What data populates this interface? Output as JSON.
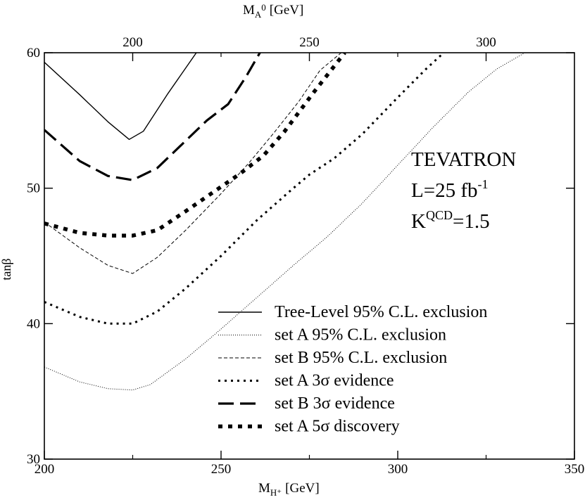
{
  "chart_data": {
    "type": "line",
    "xlabel": "M",
    "xlabel_sub": "H⁺",
    "xlabel_unit": "[GeV]",
    "x2label": "M",
    "x2label_sub": "A",
    "x2label_sup": "0",
    "x2label_unit": "[GeV]",
    "ylabel": "tanβ",
    "xlim": [
      200,
      350
    ],
    "ylim": [
      30,
      60
    ],
    "x2lim_note": "top axis: M_A0 corresponding to bottom M_H+",
    "x_ticks": [
      200,
      250,
      300,
      350
    ],
    "x_tick_labels": [
      "200",
      "250",
      "300",
      "350"
    ],
    "y_ticks": [
      30,
      40,
      50,
      60
    ],
    "y_tick_labels": [
      "30",
      "40",
      "50",
      "60"
    ],
    "x2_ticks": [
      200,
      250,
      300
    ],
    "x2_tick_positions_in_MH": [
      225,
      275,
      325
    ],
    "x2_tick_labels": [
      "200",
      "250",
      "300"
    ],
    "annotation": {
      "line1": "TEVATRON",
      "line2_main": "L=25 fb",
      "line2_sup": "-1",
      "line3_main": "K",
      "line3_sup": "QCD",
      "line3_tail": "=1.5"
    },
    "series": [
      {
        "name": "Tree-Level 95% C.L. exclusion",
        "style": "solid",
        "x": [
          200,
          210,
          218,
          224,
          228,
          235,
          243
        ],
        "y": [
          59.3,
          56.9,
          54.9,
          53.6,
          54.2,
          57.0,
          60.0
        ]
      },
      {
        "name": "set A 95% C.L. exclusion",
        "style": "dotted-thin",
        "x": [
          200,
          210,
          218,
          225,
          230,
          240,
          250,
          260,
          270,
          280,
          290,
          300,
          310,
          320,
          328,
          336
        ],
        "y": [
          36.8,
          35.7,
          35.2,
          35.1,
          35.5,
          37.4,
          39.6,
          41.9,
          44.2,
          46.4,
          48.9,
          51.7,
          54.5,
          57.1,
          58.8,
          60.0
        ]
      },
      {
        "name": "set B 95% C.L. exclusion",
        "style": "dashed-thin",
        "x": [
          200,
          210,
          218,
          225,
          232,
          240,
          250,
          258,
          265,
          272,
          278,
          284
        ],
        "y": [
          47.5,
          45.6,
          44.3,
          43.7,
          44.9,
          46.9,
          49.6,
          51.9,
          54.1,
          56.4,
          58.7,
          60.0
        ]
      },
      {
        "name": "set A 3σ evidence",
        "style": "dotted",
        "x": [
          200,
          210,
          218,
          225,
          232,
          240,
          250,
          260,
          270,
          275,
          282,
          290,
          300,
          308,
          313
        ],
        "y": [
          41.6,
          40.5,
          40.0,
          40.0,
          40.9,
          42.6,
          45.0,
          47.6,
          49.9,
          51.0,
          52.2,
          54.0,
          56.7,
          58.8,
          60.0
        ]
      },
      {
        "name": "set B 3σ evidence",
        "style": "dashed-thick",
        "x": [
          200,
          210,
          218,
          225,
          232,
          240,
          246,
          252,
          257,
          261
        ],
        "y": [
          54.3,
          52.0,
          50.9,
          50.6,
          51.5,
          53.5,
          55.0,
          56.2,
          58.2,
          60.0
        ]
      },
      {
        "name": "set A 5σ discovery",
        "style": "dotted-thick",
        "x": [
          200,
          210,
          218,
          225,
          232,
          240,
          250,
          255,
          262,
          268,
          276,
          285
        ],
        "y": [
          47.4,
          46.7,
          46.5,
          46.5,
          46.9,
          48.3,
          50.1,
          51.0,
          52.4,
          54.2,
          57.0,
          60.0
        ]
      }
    ]
  }
}
